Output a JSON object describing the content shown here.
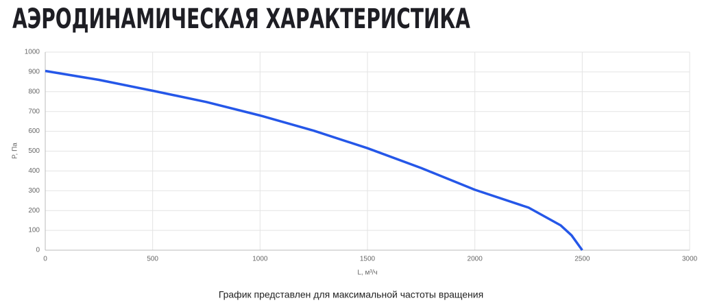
{
  "chart_data": {
    "type": "line",
    "title": "АЭРОДИНАМИЧЕСКАЯ ХАРАКТЕРИСТИКА",
    "x_label": "L, м³/ч",
    "y_label": "P, Па",
    "caption": "График представлен для максимальной частоты вращения",
    "x": [
      0,
      250,
      500,
      750,
      1000,
      1250,
      1500,
      1750,
      2000,
      2250,
      2400,
      2450,
      2500
    ],
    "values": [
      905,
      860,
      805,
      748,
      680,
      603,
      515,
      415,
      305,
      215,
      125,
      75,
      0
    ],
    "color": "#2557e8",
    "xlim": [
      0,
      3000
    ],
    "xticks": [
      0,
      500,
      1000,
      1500,
      2000,
      2500,
      3000
    ],
    "ylim": [
      0,
      1000
    ],
    "yticks": [
      0,
      100,
      200,
      300,
      400,
      500,
      600,
      700,
      800,
      900,
      1000
    ],
    "grid": true
  }
}
